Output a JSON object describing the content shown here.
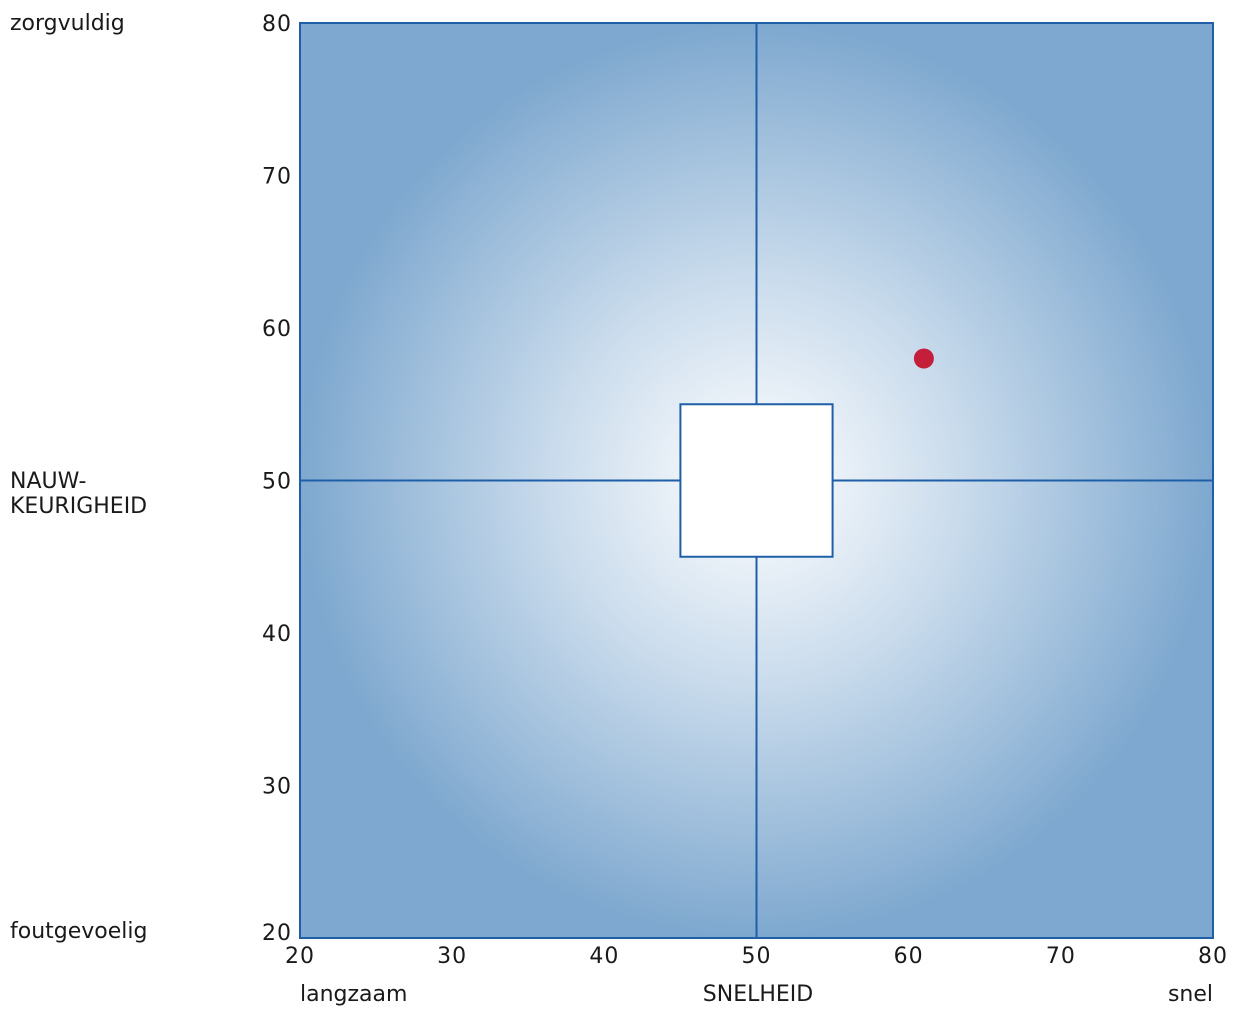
{
  "chart_data": {
    "type": "scatter",
    "title": "",
    "xlabel": "SNELHEID",
    "ylabel_lines": [
      "NAUW-",
      "KEURIGHEID"
    ],
    "xlim": [
      20,
      80
    ],
    "ylim": [
      20,
      80
    ],
    "x_ticks": [
      20,
      30,
      40,
      50,
      60,
      70,
      80
    ],
    "y_ticks": [
      20,
      30,
      40,
      50,
      60,
      70,
      80
    ],
    "x_low_label": "langzaam",
    "x_high_label": "snel",
    "y_high_label": "zorgvuldig",
    "y_low_label": "foutgevoelig",
    "grid": false,
    "crosshair": {
      "x": 50,
      "y": 50
    },
    "center_box": {
      "x_min": 45,
      "x_max": 55,
      "y_min": 45,
      "y_max": 55
    },
    "points": [
      {
        "x": 61,
        "y": 58
      }
    ],
    "colors": {
      "background_center": "#ffffff",
      "background_edge": "#7ea8cf",
      "lines": "#1f5fa8",
      "point": "#c41e3a",
      "box_fill": "#ffffff"
    }
  }
}
